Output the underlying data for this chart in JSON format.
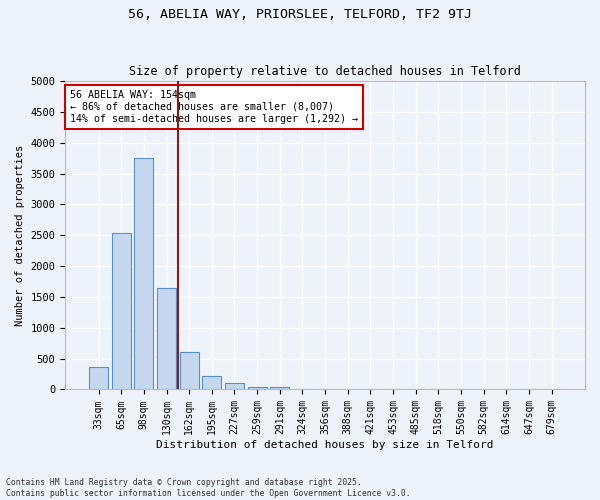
{
  "title_line1": "56, ABELIA WAY, PRIORSLEE, TELFORD, TF2 9TJ",
  "title_line2": "Size of property relative to detached houses in Telford",
  "xlabel": "Distribution of detached houses by size in Telford",
  "ylabel": "Number of detached properties",
  "categories": [
    "33sqm",
    "65sqm",
    "98sqm",
    "130sqm",
    "162sqm",
    "195sqm",
    "227sqm",
    "259sqm",
    "291sqm",
    "324sqm",
    "356sqm",
    "388sqm",
    "421sqm",
    "453sqm",
    "485sqm",
    "518sqm",
    "550sqm",
    "582sqm",
    "614sqm",
    "647sqm",
    "679sqm"
  ],
  "values": [
    370,
    2530,
    3760,
    1650,
    610,
    220,
    100,
    45,
    45,
    0,
    0,
    0,
    0,
    0,
    0,
    0,
    0,
    0,
    0,
    0,
    0
  ],
  "bar_color": "#c5d8f0",
  "bar_edge_color": "#5b8fc9",
  "vline_x": 3.5,
  "vline_color": "#8b1a1a",
  "annotation_text": "56 ABELIA WAY: 154sqm\n← 86% of detached houses are smaller (8,007)\n14% of semi-detached houses are larger (1,292) →",
  "annotation_box_color": "#ffffff",
  "annotation_box_edge": "#cc0000",
  "ylim": [
    0,
    5000
  ],
  "yticks": [
    0,
    500,
    1000,
    1500,
    2000,
    2500,
    3000,
    3500,
    4000,
    4500,
    5000
  ],
  "background_color": "#eef2f9",
  "grid_color": "#ffffff",
  "footer_line1": "Contains HM Land Registry data © Crown copyright and database right 2025.",
  "footer_line2": "Contains public sector information licensed under the Open Government Licence v3.0."
}
